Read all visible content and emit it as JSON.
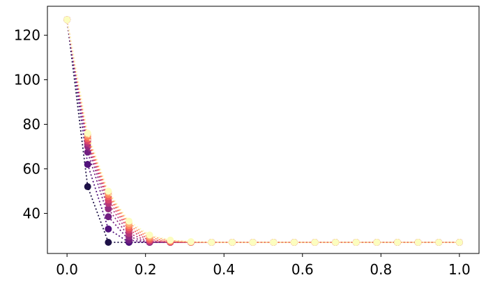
{
  "chart_data": {
    "type": "line",
    "title": "",
    "xlabel": "",
    "ylabel": "",
    "xlim": [
      -0.05,
      1.05
    ],
    "ylim": [
      22,
      133
    ],
    "grid": false,
    "legend": "none",
    "line_style": "dotted",
    "marker": "circle",
    "colormap": "magma",
    "x": [
      0.0,
      0.0526,
      0.1053,
      0.1579,
      0.2105,
      0.2632,
      0.3158,
      0.3684,
      0.4211,
      0.4737,
      0.5263,
      0.5789,
      0.6316,
      0.6842,
      0.7368,
      0.7895,
      0.8421,
      0.8947,
      0.9474,
      1.0
    ],
    "series": [
      {
        "color": "#1d1147",
        "values": [
          127,
          52,
          27,
          27,
          27,
          27,
          27,
          27,
          27,
          27,
          27,
          27,
          27,
          27,
          27,
          27,
          27,
          27,
          27,
          27
        ]
      },
      {
        "color": "#51127c",
        "values": [
          127,
          62,
          33,
          27,
          27,
          27,
          27,
          27,
          27,
          27,
          27,
          27,
          27,
          27,
          27,
          27,
          27,
          27,
          27,
          27
        ]
      },
      {
        "color": "#721f81",
        "values": [
          127,
          67.5,
          38.5,
          28,
          27,
          27,
          27,
          27,
          27,
          27,
          27,
          27,
          27,
          27,
          27,
          27,
          27,
          27,
          27,
          27
        ]
      },
      {
        "color": "#952c80",
        "values": [
          127,
          70,
          42,
          29.5,
          27,
          27,
          27,
          27,
          27,
          27,
          27,
          27,
          27,
          27,
          27,
          27,
          27,
          27,
          27,
          27
        ]
      },
      {
        "color": "#b73779",
        "values": [
          127,
          71.5,
          44.5,
          31,
          27.3,
          27,
          27,
          27,
          27,
          27,
          27,
          27,
          27,
          27,
          27,
          27,
          27,
          27,
          27,
          27
        ]
      },
      {
        "color": "#d8456c",
        "values": [
          127,
          72.5,
          46,
          32.5,
          27.8,
          27,
          27,
          27,
          27,
          27,
          27,
          27,
          27,
          27,
          27,
          27,
          27,
          27,
          27,
          27
        ]
      },
      {
        "color": "#f1605d",
        "values": [
          127,
          73.5,
          47.5,
          33.5,
          28.3,
          27.2,
          27,
          27,
          27,
          27,
          27,
          27,
          27,
          27,
          27,
          27,
          27,
          27,
          27,
          27
        ]
      },
      {
        "color": "#fc8961",
        "values": [
          127,
          74.5,
          48.5,
          34.5,
          29,
          27.5,
          27,
          27,
          27,
          27,
          27,
          27,
          27,
          27,
          27,
          27,
          27,
          27,
          27,
          27
        ]
      },
      {
        "color": "#feb078",
        "values": [
          127,
          75.5,
          49.5,
          35.5,
          29.7,
          27.8,
          27.2,
          27,
          27,
          27,
          27,
          27,
          27,
          27,
          27,
          27,
          27,
          27,
          27,
          27
        ]
      },
      {
        "color": "#fcfdbf",
        "values": [
          127,
          76,
          50,
          36.5,
          30.3,
          28,
          27.3,
          27,
          27,
          27,
          27,
          27,
          27,
          27,
          27,
          27,
          27,
          27,
          27,
          27
        ]
      }
    ],
    "xticks": [
      0.0,
      0.2,
      0.4,
      0.6,
      0.8,
      1.0
    ],
    "xtick_labels": [
      "0.0",
      "0.2",
      "0.4",
      "0.6",
      "0.8",
      "1.0"
    ],
    "yticks": [
      40,
      60,
      80,
      100,
      120
    ],
    "ytick_labels": [
      "40",
      "60",
      "80",
      "100",
      "120"
    ]
  }
}
